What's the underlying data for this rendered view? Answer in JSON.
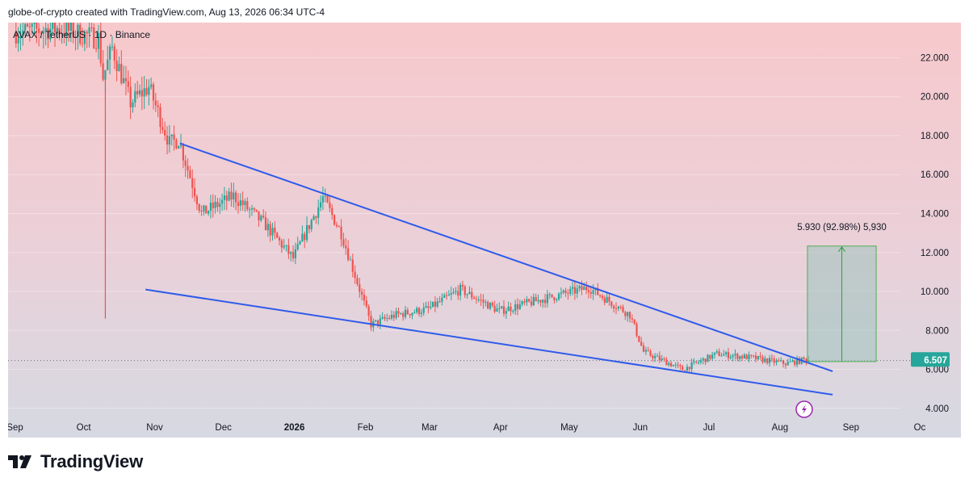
{
  "header": {
    "title": "globe-of-crypto created with TradingView.com, Aug 13, 2026 06:34 UTC-4"
  },
  "chart": {
    "symbol_label": "AVAX / TetherUS · 1D · Binance"
  },
  "footer": {
    "brand": "TradingView"
  },
  "colors": {
    "bull": "#26a69a",
    "bear": "#ef5350",
    "trendline": "#2f5bea",
    "measure_fill": "#9fc2bd",
    "price_badge": "#26a69a",
    "bg_top": "#f7c9cc",
    "bg_bottom": "#d6d9e2"
  },
  "chart_data": {
    "type": "candlestick",
    "yaxis": {
      "ticks": [
        "22.000",
        "20.000",
        "18.000",
        "16.000",
        "14.000",
        "12.000",
        "10.000",
        "8.000",
        "6.000",
        "4.000"
      ],
      "range": [
        2.5,
        23.8
      ],
      "side": "right"
    },
    "xaxis": {
      "labels": [
        "Sep",
        "Oct",
        "Nov",
        "Dec",
        "2026",
        "Feb",
        "Mar",
        "Apr",
        "May",
        "Jun",
        "Jul",
        "Aug",
        "Sep",
        "Oc"
      ],
      "bold": [
        "2026"
      ]
    },
    "price_anchors": [
      [
        "2025-09-01",
        23.3
      ],
      [
        "2025-09-20",
        23.5
      ],
      [
        "2025-10-08",
        23.0
      ],
      [
        "2025-10-10",
        21.0
      ],
      [
        "2025-10-14",
        22.5
      ],
      [
        "2025-10-22",
        19.7
      ],
      [
        "2025-10-30",
        20.5
      ],
      [
        "2025-11-08",
        17.6
      ],
      [
        "2025-11-12",
        17.8
      ],
      [
        "2025-11-22",
        14.0
      ],
      [
        "2025-12-06",
        14.9
      ],
      [
        "2025-12-20",
        13.4
      ],
      [
        "2026-01-01",
        11.7
      ],
      [
        "2026-01-08",
        13.4
      ],
      [
        "2026-01-14",
        14.8
      ],
      [
        "2026-01-22",
        13.0
      ],
      [
        "2026-02-04",
        8.3
      ],
      [
        "2026-02-15",
        8.8
      ],
      [
        "2026-03-01",
        9.1
      ],
      [
        "2026-03-15",
        10.1
      ],
      [
        "2026-04-01",
        9.0
      ],
      [
        "2026-04-20",
        9.6
      ],
      [
        "2026-05-10",
        10.2
      ],
      [
        "2026-05-28",
        8.8
      ],
      [
        "2026-06-03",
        6.9
      ],
      [
        "2026-06-20",
        6.0
      ],
      [
        "2026-07-05",
        6.8
      ],
      [
        "2026-07-20",
        6.6
      ],
      [
        "2026-08-04",
        6.3
      ],
      [
        "2026-08-13",
        6.507
      ]
    ],
    "spike": {
      "date": "2025-10-10",
      "low": 8.6
    },
    "upper_trendline": {
      "from": [
        "2025-11-12",
        17.6
      ],
      "to": [
        "2026-08-24",
        5.9
      ]
    },
    "lower_trendline": {
      "from": [
        "2025-10-28",
        10.1
      ],
      "to": [
        "2026-08-24",
        4.7
      ]
    },
    "measure": {
      "label": "5.930 (92.98%) 5,930",
      "start_date": "2026-08-13",
      "end_date": "2026-09-12",
      "from_price": 6.4,
      "to_price": 12.33
    },
    "last_price": {
      "value": "6.507",
      "price": 6.507
    },
    "dotted_price_line": 6.45,
    "x_range": [
      "2025-08-29",
      "2026-10-19"
    ]
  }
}
